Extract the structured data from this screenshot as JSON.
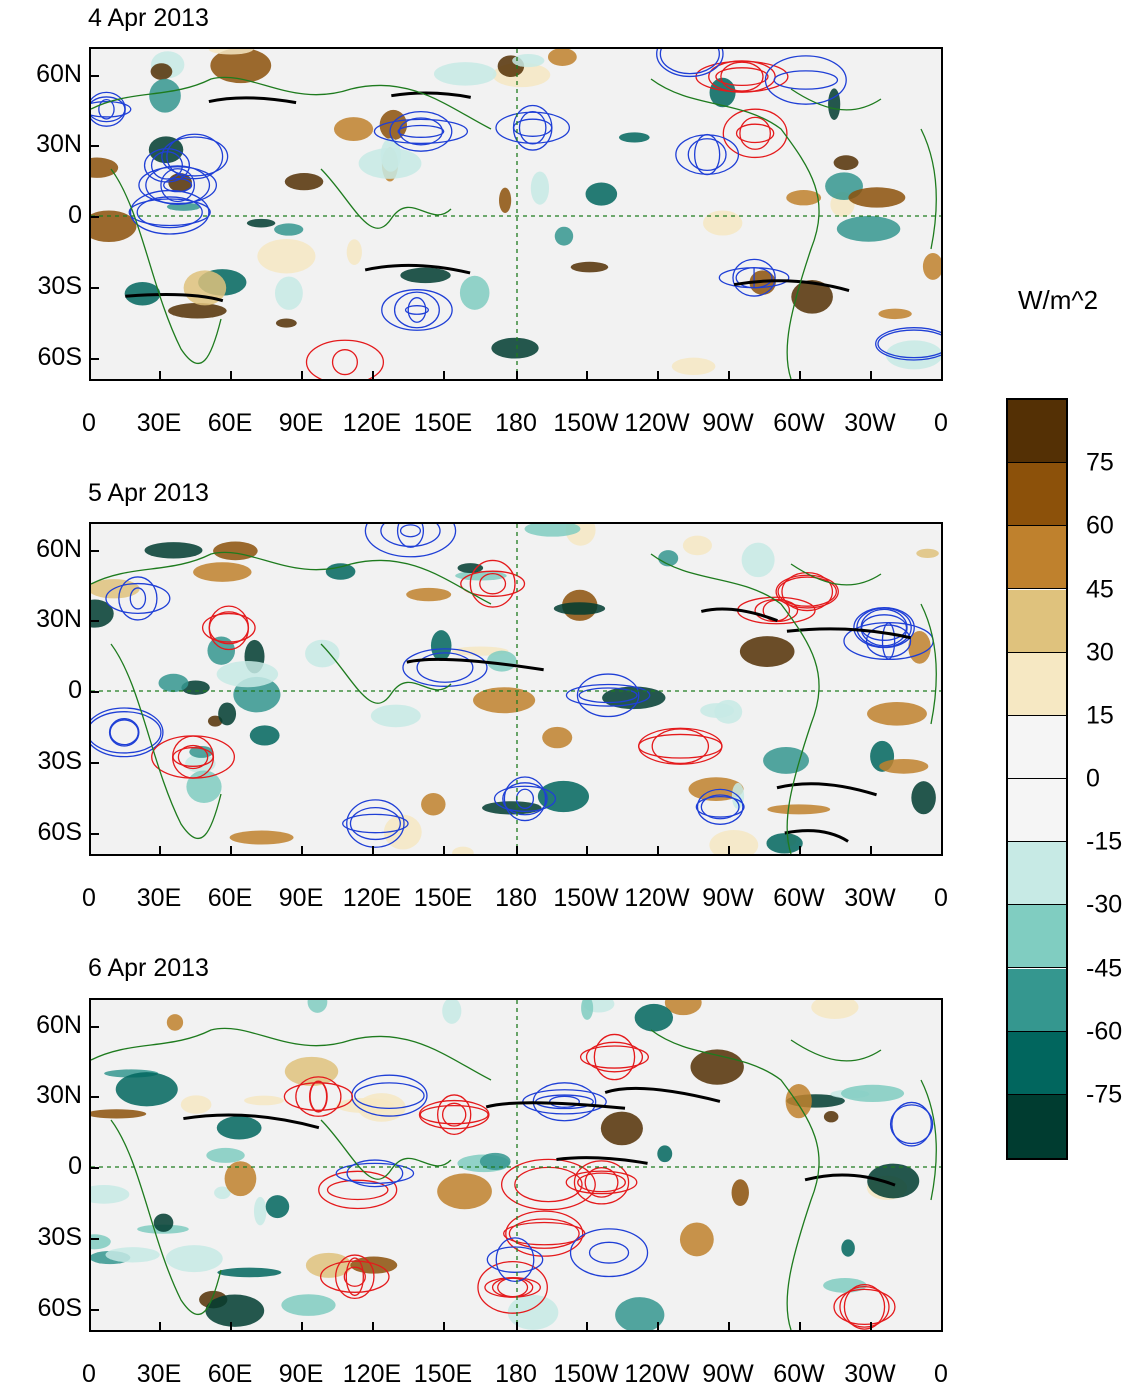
{
  "panels": [
    {
      "title": "4 Apr 2013"
    },
    {
      "title": "5 Apr 2013"
    },
    {
      "title": "6 Apr 2013"
    }
  ],
  "lat_labels": [
    "60N",
    "30N",
    "0",
    "30S",
    "60S"
  ],
  "lon_labels": [
    "0",
    "30E",
    "60E",
    "90E",
    "120E",
    "150E",
    "180",
    "150W",
    "120W",
    "90W",
    "60W",
    "30W",
    "0"
  ],
  "colorbar": {
    "units": "W/m^2",
    "labels": [
      "75",
      "60",
      "45",
      "30",
      "15",
      "0",
      "-15",
      "-30",
      "-45",
      "-60",
      "-75"
    ],
    "colors": [
      "#543005",
      "#8c510a",
      "#bf812d",
      "#dfc27d",
      "#f6e8c3",
      "#f5f5f5",
      "#f5f5f5",
      "#c7eae5",
      "#80cdc1",
      "#35978f",
      "#01665e",
      "#003c30"
    ]
  },
  "colors": {
    "positive_contour": "#e41a1c",
    "negative_contour": "#1f3fd6",
    "bold_contour": "#000000",
    "coastline": "#1e7b1e",
    "reference_line": "#1e7b1e"
  }
}
